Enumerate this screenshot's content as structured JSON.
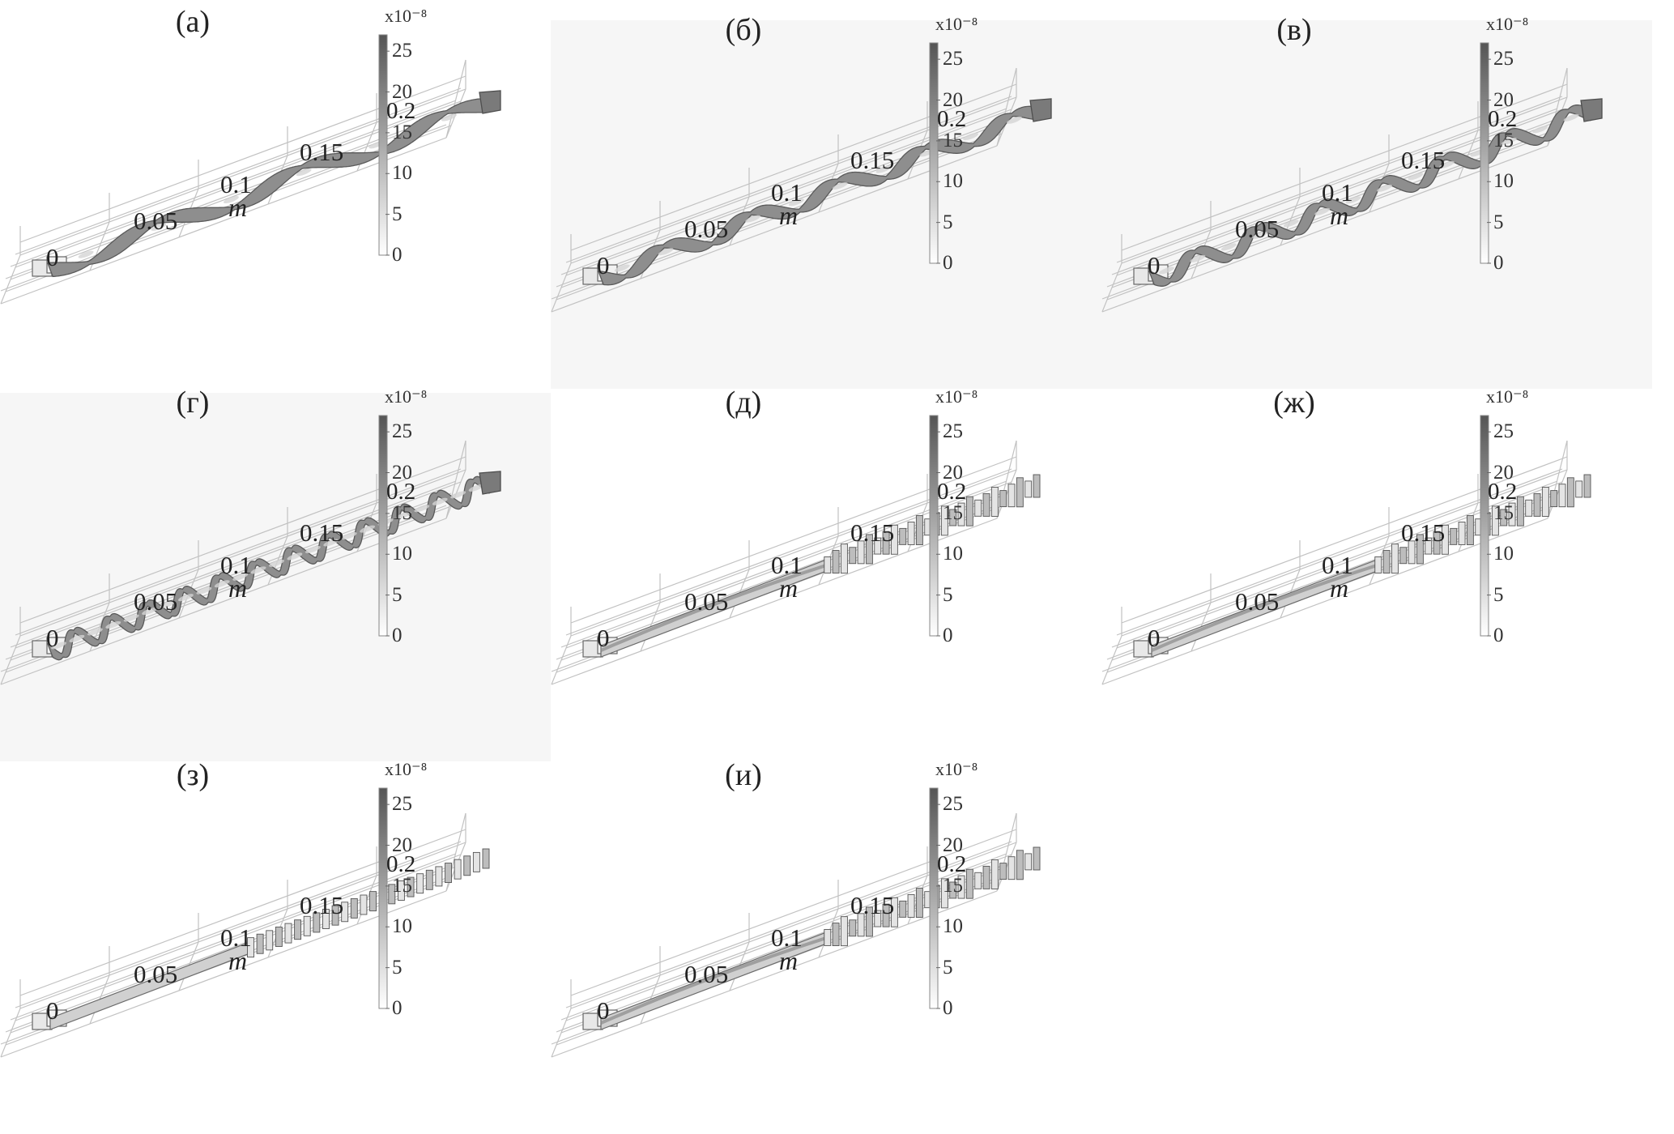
{
  "figure": {
    "panels": [
      {
        "id": "a",
        "label": "(а)",
        "pattern": "wave",
        "turns": 3
      },
      {
        "id": "b",
        "label": "(б)",
        "pattern": "wave",
        "turns": 5
      },
      {
        "id": "v",
        "label": "(в)",
        "pattern": "twist",
        "turns": 7
      },
      {
        "id": "g",
        "label": "(г)",
        "pattern": "twist",
        "turns": 12
      },
      {
        "id": "d",
        "label": "(д)",
        "pattern": "straight-blocks"
      },
      {
        "id": "zh",
        "label": "(ж)",
        "pattern": "straight-blocks"
      },
      {
        "id": "z",
        "label": "(з)",
        "pattern": "straight-fins"
      },
      {
        "id": "i",
        "label": "(и)",
        "pattern": "mixed"
      }
    ],
    "axis_ticks": [
      "0",
      "0.05",
      "0.1",
      "0.15"
    ],
    "axis_unit": "m",
    "extra_tick": "0.2",
    "colorbar": {
      "exponent": "x10⁻⁸",
      "ticks": [
        "25",
        "20",
        "15",
        "10",
        "5",
        "0"
      ],
      "min": 0,
      "max": 27,
      "colors": [
        "#ffffff",
        "#555555"
      ]
    }
  }
}
